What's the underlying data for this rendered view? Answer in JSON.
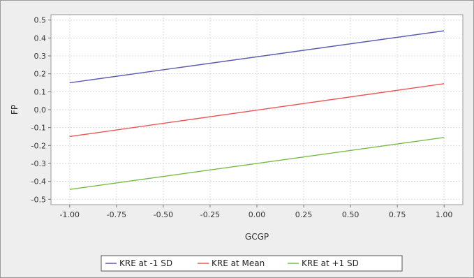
{
  "chart_data": {
    "type": "line",
    "xlabel": "GCGP",
    "ylabel": "FP",
    "xlim": [
      -1.1,
      1.1
    ],
    "ylim": [
      -0.53,
      0.53
    ],
    "xticks": [
      -1.0,
      -0.75,
      -0.5,
      -0.25,
      0.0,
      0.25,
      0.5,
      0.75,
      1.0
    ],
    "xtick_labels": [
      "-1.00",
      "-0.75",
      "-0.50",
      "-0.25",
      "0.00",
      "0.25",
      "0.50",
      "0.75",
      "1.00"
    ],
    "yticks": [
      0.5,
      0.4,
      0.3,
      0.2,
      0.1,
      0.0,
      -0.1,
      -0.2,
      -0.3,
      -0.4,
      -0.5
    ],
    "ytick_labels": [
      "0.5",
      "0.4",
      "0.3",
      "0.2",
      "0.1",
      "0.0",
      "-0.1",
      "-0.2",
      "-0.3",
      "-0.4",
      "-0.5"
    ],
    "grid": true,
    "legend_position": "bottom",
    "series": [
      {
        "name": "KRE at -1 SD",
        "color": "#5b5bb0",
        "x": [
          -1.0,
          1.0
        ],
        "y": [
          0.15,
          0.44
        ]
      },
      {
        "name": "KRE at Mean",
        "color": "#ee5555",
        "x": [
          -1.0,
          1.0
        ],
        "y": [
          -0.15,
          0.145
        ]
      },
      {
        "name": "KRE at +1 SD",
        "color": "#77bb44",
        "x": [
          -1.0,
          1.0
        ],
        "y": [
          -0.445,
          -0.155
        ]
      }
    ]
  }
}
